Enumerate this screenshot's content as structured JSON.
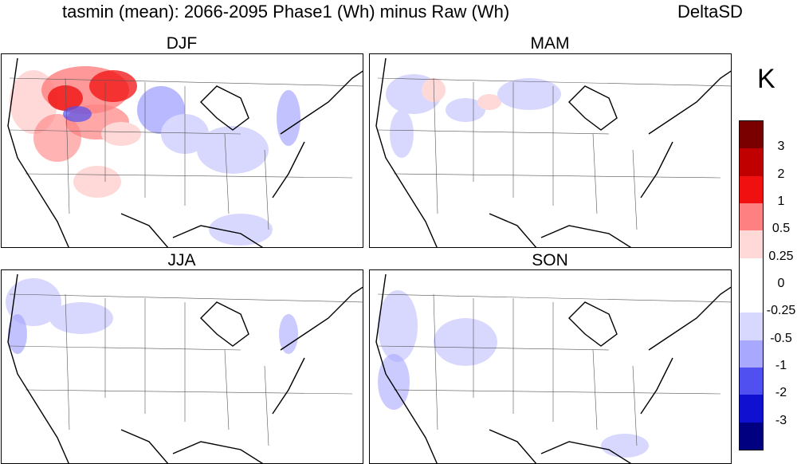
{
  "title": {
    "main": "tasmin (mean): 2066-2095 Phase1 (Wh) minus Raw (Wh)",
    "tag": "DeltaSD"
  },
  "panels": [
    {
      "label": "DJF"
    },
    {
      "label": "MAM"
    },
    {
      "label": "JJA"
    },
    {
      "label": "SON"
    }
  ],
  "colorbar": {
    "unit": "K",
    "labels": [
      "3",
      "2",
      "1",
      "0.5",
      "0.25",
      "0",
      "-0.25",
      "-0.5",
      "-1",
      "-2",
      "-3"
    ],
    "colors": [
      "#7a0000",
      "#c00000",
      "#f01010",
      "#ff8080",
      "#ffd8d8",
      "#ffffff",
      "#ffffff",
      "#d8d8ff",
      "#a8a8ff",
      "#5050f0",
      "#1010d0",
      "#000080"
    ]
  }
}
